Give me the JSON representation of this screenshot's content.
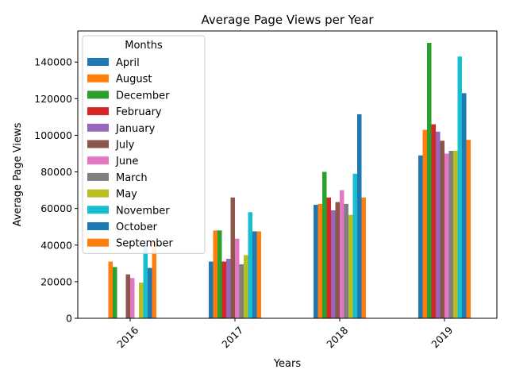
{
  "chart_data": {
    "type": "bar",
    "title": "Average Page Views per Year",
    "xlabel": "Years",
    "ylabel": "Average Page Views",
    "categories": [
      "2016",
      "2017",
      "2018",
      "2019"
    ],
    "ylim": [
      0,
      157000
    ],
    "yticks": [
      0,
      20000,
      40000,
      60000,
      80000,
      100000,
      120000,
      140000
    ],
    "grid": false,
    "legend": {
      "title": "Months",
      "placement": "top-left"
    },
    "series": [
      {
        "name": "April",
        "color": "#1f77b4",
        "values": [
          0,
          31000,
          62000,
          89000
        ]
      },
      {
        "name": "August",
        "color": "#ff7f0e",
        "values": [
          31000,
          48000,
          62500,
          103000
        ]
      },
      {
        "name": "December",
        "color": "#2ca02c",
        "values": [
          28000,
          48000,
          80000,
          150500
        ]
      },
      {
        "name": "February",
        "color": "#d62728",
        "values": [
          0,
          31000,
          66000,
          106000
        ]
      },
      {
        "name": "January",
        "color": "#9467bd",
        "values": [
          0,
          32500,
          59000,
          102000
        ]
      },
      {
        "name": "July",
        "color": "#8c564b",
        "values": [
          24000,
          66000,
          63500,
          97000
        ]
      },
      {
        "name": "June",
        "color": "#e377c2",
        "values": [
          22000,
          43500,
          70000,
          90000
        ]
      },
      {
        "name": "March",
        "color": "#7f7f7f",
        "values": [
          0,
          29500,
          62500,
          91500
        ]
      },
      {
        "name": "May",
        "color": "#bcbd22",
        "values": [
          19500,
          34500,
          56500,
          91500
        ]
      },
      {
        "name": "November",
        "color": "#17becf",
        "values": [
          41000,
          58000,
          79000,
          143000
        ]
      },
      {
        "name": "October",
        "color": "#1f77b4",
        "values": [
          27500,
          47500,
          111500,
          123000
        ]
      },
      {
        "name": "September",
        "color": "#ff7f0e",
        "values": [
          42000,
          47500,
          66000,
          97500
        ]
      }
    ]
  }
}
